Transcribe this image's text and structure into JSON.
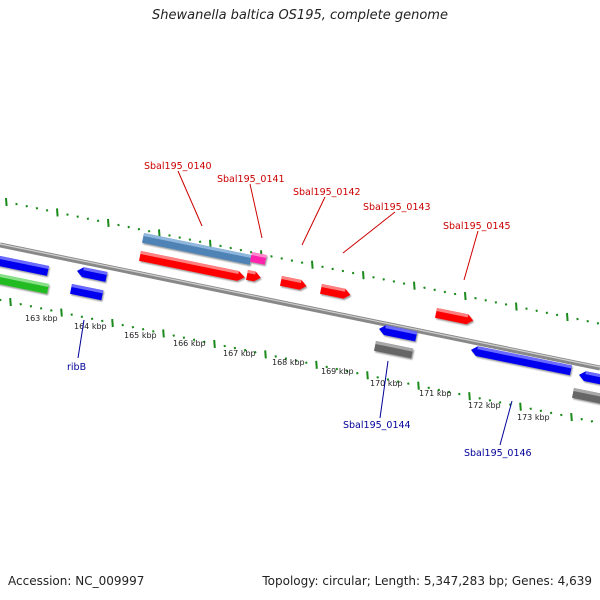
{
  "title": "Shewanella baltica OS195, complete genome",
  "accession": "Accession: NC_009997",
  "summary": "Topology: circular; Length: 5,347,283 bp; Genes: 4,639",
  "colors": {
    "tick": "#1a8a1a",
    "forward_cds": "#ff0000",
    "reverse_cds": "#0000ee",
    "gene_steelblue": "#4f82b5",
    "gene_magenta": "#ff22aa",
    "gene_green": "#22bb22",
    "gene_gray": "#666666",
    "backbone": "#888888",
    "label_forward": "#cc0000",
    "label_reverse": "#000099",
    "kbp_label": "#222222"
  },
  "kbp_ticks": [
    "163 kbp",
    "164 kbp",
    "165 kbp",
    "166 kbp",
    "167 kbp",
    "168 kbp",
    "169 kbp",
    "170 kbp",
    "171 kbp",
    "172 kbp",
    "173 kbp"
  ],
  "gene_labels_forward": [
    "Sbal195_0140",
    "Sbal195_0141",
    "Sbal195_0142",
    "Sbal195_0143",
    "Sbal195_0145"
  ],
  "gene_labels_reverse": [
    "ribB",
    "Sbal195_0144",
    "Sbal195_0146"
  ]
}
